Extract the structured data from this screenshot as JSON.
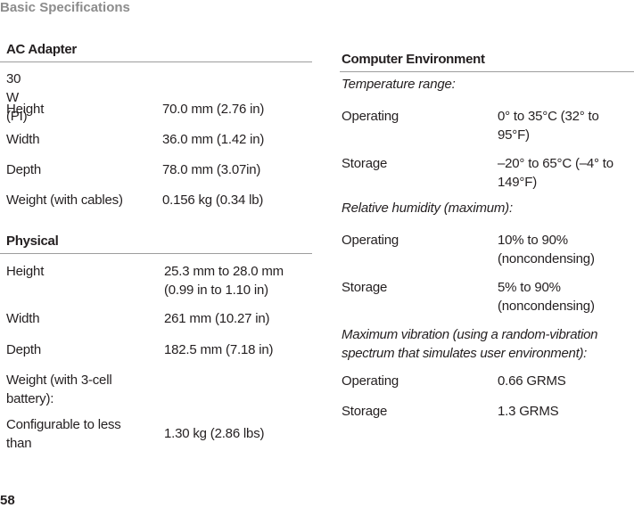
{
  "header": {
    "title": "Basic Specifications"
  },
  "footer": {
    "page_number": "58"
  },
  "ac_adapter": {
    "title": "AC Adapter",
    "rows": [
      {
        "label": "30 W (PI)",
        "value": ""
      },
      {
        "label": "Height",
        "value": "70.0 mm (2.76 in)"
      },
      {
        "label": "Width",
        "value": "36.0 mm (1.42 in)"
      },
      {
        "label": "Depth",
        "value": "78.0 mm (3.07in)"
      },
      {
        "label": "Weight (with cables)",
        "value": "0.156 kg (0.34 lb)"
      }
    ]
  },
  "physical": {
    "title": "Physical",
    "rows": [
      {
        "label": "Height",
        "value_line1": "25.3 mm to 28.0 mm",
        "value_line2": "(0.99 in to 1.10 in)"
      },
      {
        "label": "Width",
        "value": "261 mm (10.27 in)"
      },
      {
        "label": "Depth",
        "value": "182.5 mm (7.18 in)"
      },
      {
        "label_line1": "Weight (with 3-cell",
        "label_line2": "battery):"
      },
      {
        "label_line1": "Configurable to less",
        "label_line2": "than",
        "value": "1.30 kg (2.86 lbs)"
      }
    ]
  },
  "computer_environment": {
    "title": "Computer Environment",
    "temperature_heading": "Temperature range:",
    "temperature": [
      {
        "label": "Operating",
        "value_line1": "0° to 35°C (32° to",
        "value_line2": "95°F)"
      },
      {
        "label": "Storage",
        "value_line1": "–20° to 65°C (–4° to",
        "value_line2": "149°F)"
      }
    ],
    "humidity_heading": "Relative humidity (maximum):",
    "humidity": [
      {
        "label": "Operating",
        "value_line1": "10% to 90%",
        "value_line2": "(noncondensing)"
      },
      {
        "label": "Storage",
        "value_line1": "5% to 90%",
        "value_line2": "(noncondensing)"
      }
    ],
    "vibration_heading_line1": "Maximum vibration (using a random-vibration",
    "vibration_heading_line2": "spectrum that simulates user environment):",
    "vibration": [
      {
        "label": "Operating",
        "value": "0.66 GRMS"
      },
      {
        "label": "Storage",
        "value": "1.3 GRMS"
      }
    ]
  }
}
